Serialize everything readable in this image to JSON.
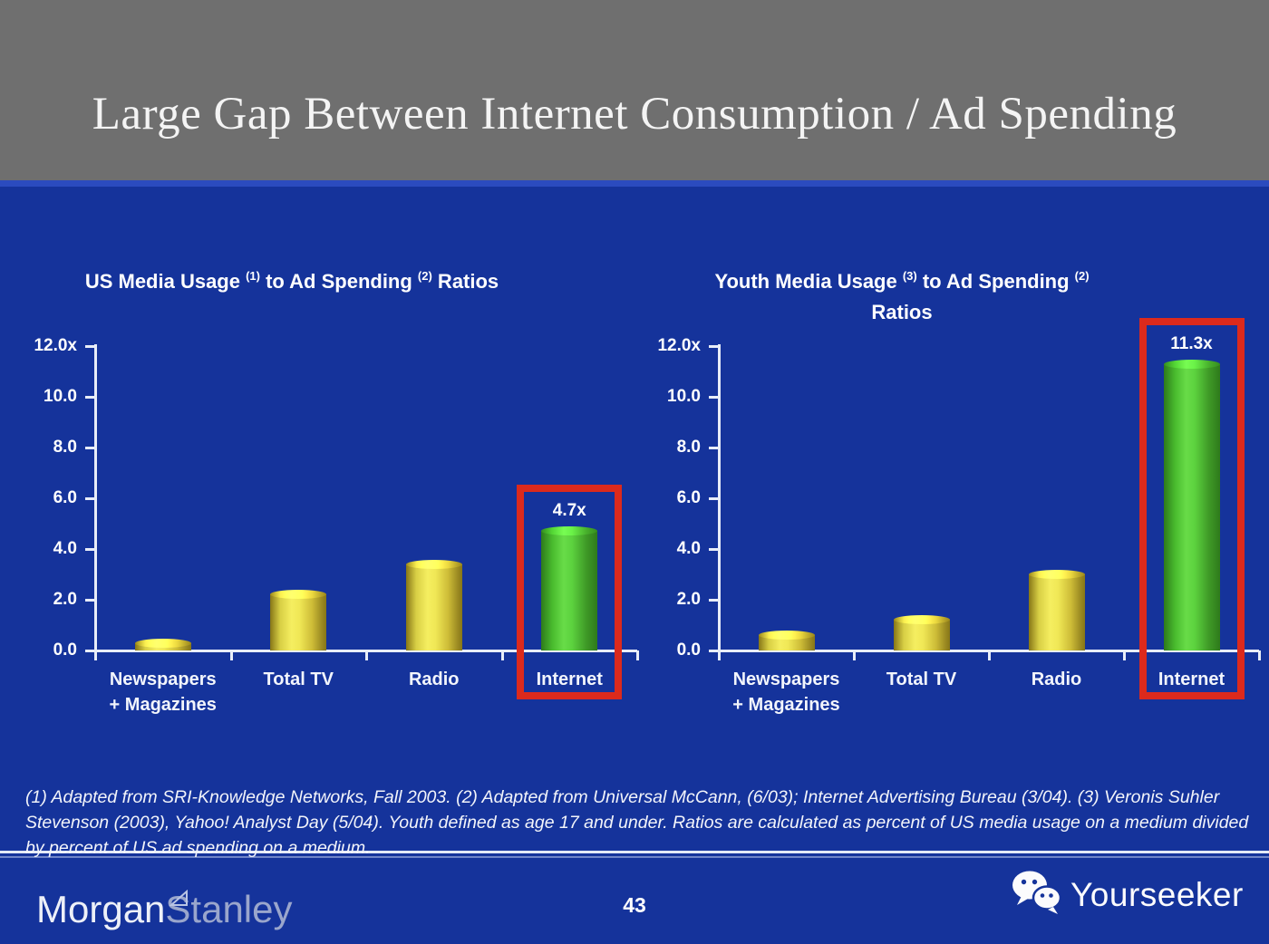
{
  "slide": {
    "title": "Large Gap Between Internet Consumption / Ad Spending",
    "page_number": "43"
  },
  "chart_data": [
    {
      "type": "bar",
      "title": "US Media Usage (1) to Ad Spending (2) Ratios",
      "title_segments": [
        {
          "text": "US Media Usage "
        },
        {
          "text": "(1)",
          "sup": true
        },
        {
          "text": " to Ad Spending "
        },
        {
          "text": "(2)",
          "sup": true
        },
        {
          "text": " Ratios"
        }
      ],
      "categories": [
        "Newspapers\n+ Magazines",
        "Total TV",
        "Radio",
        "Internet"
      ],
      "values": [
        0.3,
        2.2,
        3.4,
        4.7
      ],
      "bar_colors": [
        "yellow",
        "yellow",
        "yellow",
        "green"
      ],
      "highlight": {
        "index": 3,
        "label": "4.7x"
      },
      "xlabel": "",
      "ylabel": "",
      "ylim": [
        0,
        12
      ],
      "yticks": [
        "12.0x",
        "10.0",
        "8.0",
        "6.0",
        "4.0",
        "2.0",
        "0.0"
      ],
      "grid": false,
      "legend": null
    },
    {
      "type": "bar",
      "title": "Youth Media Usage (3) to Ad Spending (2) Ratios",
      "title_segments": [
        {
          "text": "Youth Media Usage "
        },
        {
          "text": "(3)",
          "sup": true
        },
        {
          "text": " to Ad Spending "
        },
        {
          "text": "(2)",
          "sup": true
        },
        {
          "break": true
        },
        {
          "text": "Ratios"
        }
      ],
      "categories": [
        "Newspapers\n+ Magazines",
        "Total TV",
        "Radio",
        "Internet"
      ],
      "values": [
        0.6,
        1.2,
        3.0,
        11.3
      ],
      "bar_colors": [
        "yellow",
        "yellow",
        "yellow",
        "green"
      ],
      "highlight": {
        "index": 3,
        "label": "11.3x"
      },
      "xlabel": "",
      "ylabel": "",
      "ylim": [
        0,
        12
      ],
      "yticks": [
        "12.0x",
        "10.0",
        "8.0",
        "6.0",
        "4.0",
        "2.0",
        "0.0"
      ],
      "grid": false,
      "legend": null
    }
  ],
  "footnote": {
    "lines": [
      "(1) Adapted from SRI-Knowledge Networks, Fall 2003.  (2) Adapted from Universal McCann, (6/03); Internet Advertising Bureau (3/04). (3) Veronis Suhler",
      "Stevenson (2003), Yahoo! Analyst Day (5/04).  Youth defined as age 17 and under.  Ratios are calculated as percent of US media usage on a medium divided",
      "by percent of US ad spending on a medium."
    ]
  },
  "footer": {
    "brand_part1": "Morgan",
    "brand_part2": "Stanley",
    "watermark_label": "Yourseeker",
    "watermark_icon": "wechat-icon"
  },
  "colors": {
    "background_blue": "#15339B",
    "header_gray": "#6F6F6F",
    "accent_strip_blue": "#2B4BBE",
    "bar_yellow": "#F2E95A",
    "bar_green": "#57CE3A",
    "highlight_red": "#DC2A1C",
    "axis_white": "#E8EDF8",
    "text_white": "#FFFFFF",
    "brand_gray": "#9AA6CC"
  }
}
